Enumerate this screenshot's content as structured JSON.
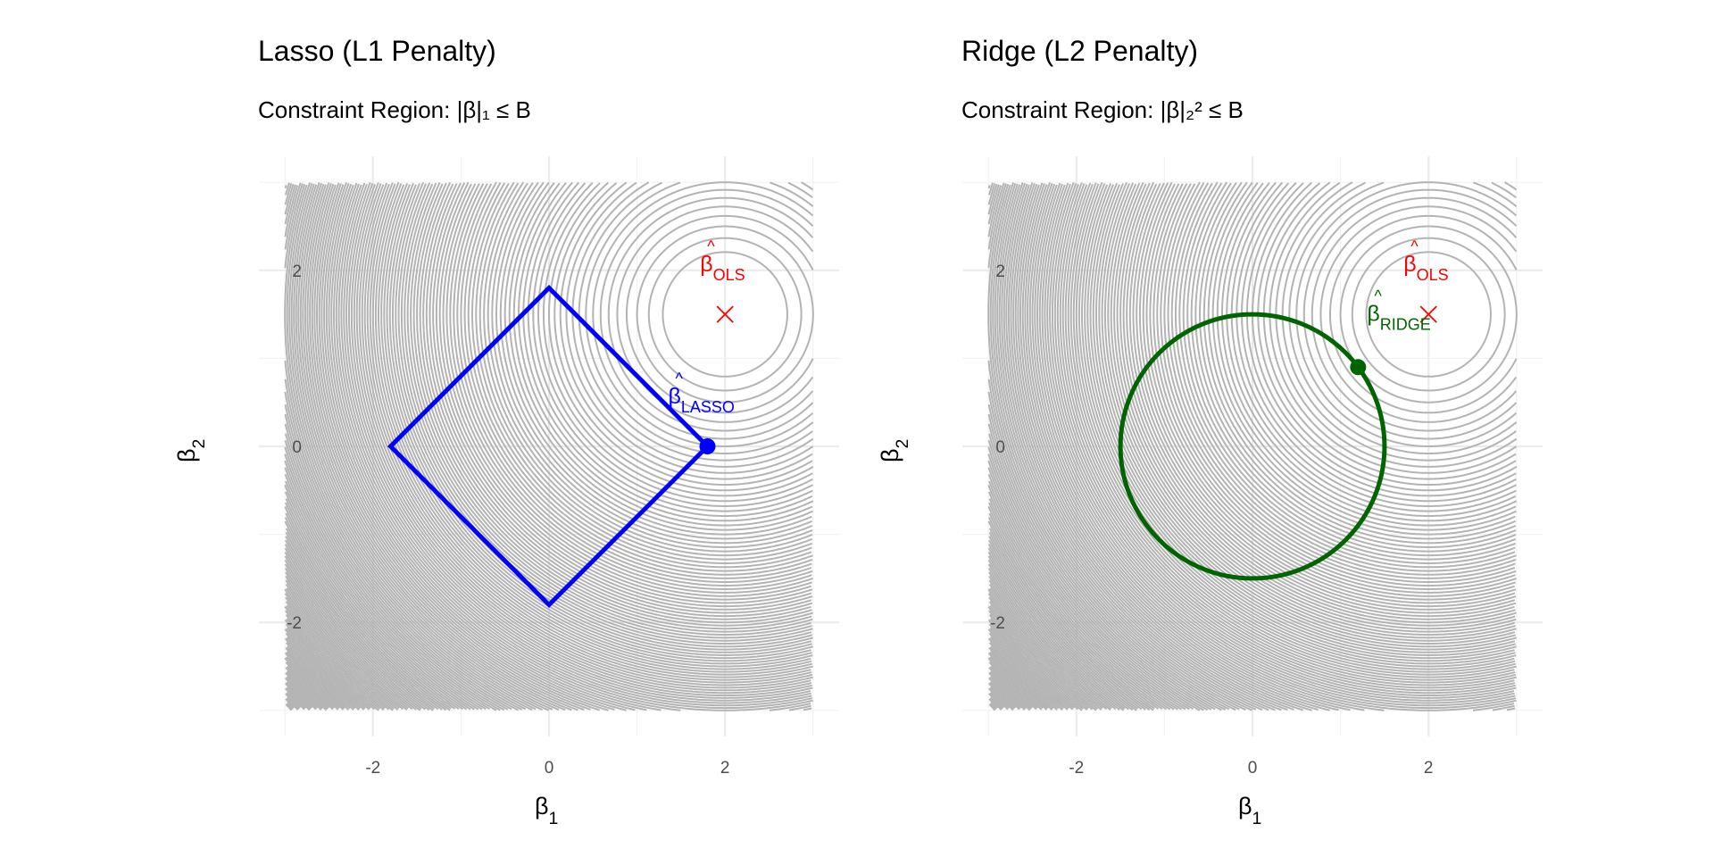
{
  "chart_data": [
    {
      "type": "line",
      "title": "Lasso (L1 Penalty)",
      "subtitle_prefix": "Constraint Region:",
      "subtitle_formula": "|β|₁ ≤ B",
      "xlabel": "β",
      "xlabel_sub": "1",
      "ylabel": "β",
      "ylabel_sub": "2",
      "xlim": [
        -3,
        3
      ],
      "ylim": [
        -3,
        3
      ],
      "x_ticks": [
        -2,
        0,
        2
      ],
      "y_ticks": [
        -2,
        0,
        2
      ],
      "x_tick_labels": [
        "-2",
        "0",
        "2"
      ],
      "y_tick_labels": [
        "-2",
        "0",
        "2"
      ],
      "grid": true,
      "contour_center": [
        2,
        1.5
      ],
      "contour_level_step": 0.25,
      "constraint": {
        "shape": "diamond",
        "B": 1.8,
        "color": "#0000ff"
      },
      "ols_point": {
        "x": 2,
        "y": 1.5,
        "label": "β",
        "label_sub": "OLS",
        "color": "#ff0000"
      },
      "solution_point": {
        "x": 1.8,
        "y": 0,
        "label": "β",
        "label_sub": "LASSO",
        "color": "#0000ff"
      }
    },
    {
      "type": "line",
      "title": "Ridge (L2 Penalty)",
      "subtitle_prefix": "Constraint Region:",
      "subtitle_formula": "|β|₂² ≤ B",
      "xlabel": "β",
      "xlabel_sub": "1",
      "ylabel": "β",
      "ylabel_sub": "2",
      "xlim": [
        -3,
        3
      ],
      "ylim": [
        -3,
        3
      ],
      "x_ticks": [
        -2,
        0,
        2
      ],
      "y_ticks": [
        -2,
        0,
        2
      ],
      "x_tick_labels": [
        "-2",
        "0",
        "2"
      ],
      "y_tick_labels": [
        "-2",
        "0",
        "2"
      ],
      "grid": true,
      "contour_center": [
        2,
        1.5
      ],
      "contour_level_step": 0.25,
      "constraint": {
        "shape": "circle",
        "radius": 1.5,
        "color": "#006400"
      },
      "ols_point": {
        "x": 2,
        "y": 1.5,
        "label": "β",
        "label_sub": "OLS",
        "color": "#ff0000"
      },
      "solution_point": {
        "x": 1.2,
        "y": 0.9,
        "label": "β",
        "label_sub": "RIDGE",
        "color": "#006400"
      }
    }
  ]
}
